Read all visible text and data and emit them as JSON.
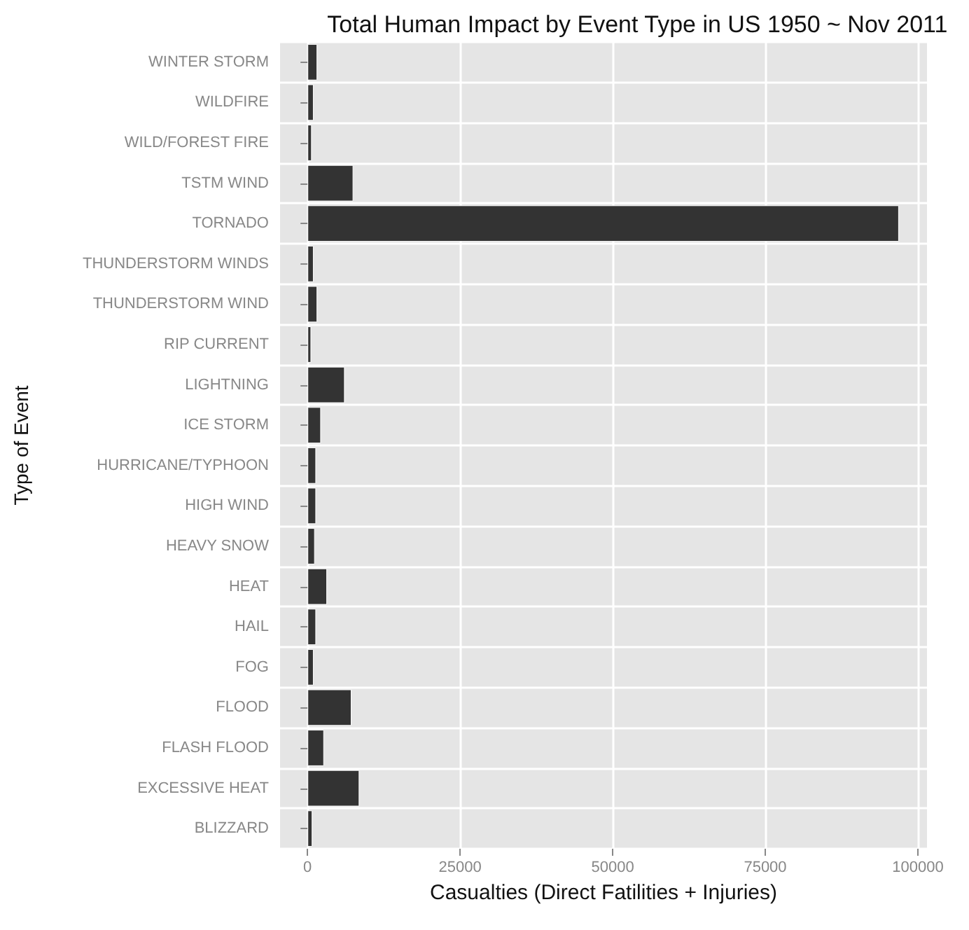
{
  "chart_data": {
    "type": "bar",
    "orientation": "horizontal",
    "title": "Total Human Impact by Event Type in US 1950 ~ Nov 2011",
    "xlabel": "Casualties (Direct Fatilities + Injuries)",
    "ylabel": "Type of Event",
    "categories": [
      "WINTER STORM",
      "WILDFIRE",
      "WILD/FOREST FIRE",
      "TSTM WIND",
      "TORNADO",
      "THUNDERSTORM WINDS",
      "THUNDERSTORM WIND",
      "RIP CURRENT",
      "LIGHTNING",
      "ICE STORM",
      "HURRICANE/TYPHOON",
      "HIGH WIND",
      "HEAVY SNOW",
      "HEAT",
      "HAIL",
      "FOG",
      "FLOOD",
      "FLASH FLOOD",
      "EXCESSIVE HEAT",
      "BLIZZARD"
    ],
    "values": [
      1600,
      1000,
      700,
      7500,
      96900,
      1000,
      1600,
      600,
      6100,
      2200,
      1400,
      1400,
      1200,
      3200,
      1400,
      1000,
      7200,
      2700,
      8500,
      800
    ],
    "color": "#333333",
    "xlim": [
      -4500,
      101500
    ],
    "xticks": [
      0,
      25000,
      50000,
      75000,
      100000
    ],
    "grid": true
  }
}
